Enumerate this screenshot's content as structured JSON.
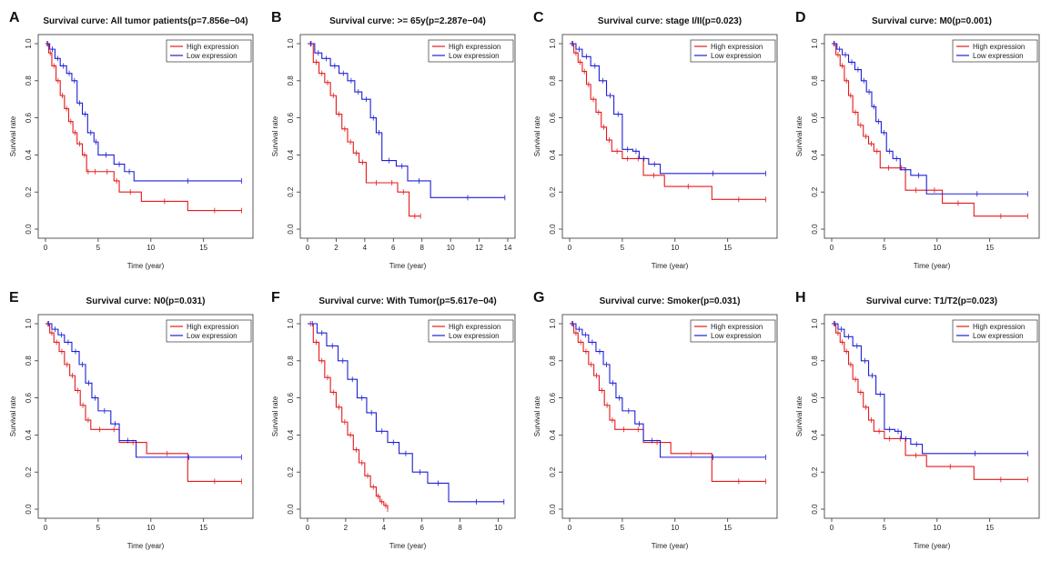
{
  "figure": {
    "legend_high": "High expression",
    "legend_low": "Low expression",
    "colors": {
      "high": "#e41a1c",
      "low": "#1f1fd6"
    }
  },
  "chart_data": [
    {
      "type": "line",
      "panel": "A",
      "title": "Survival curve: All tumor patients(p=7.856e−04)",
      "xlabel": "Time (year)",
      "ylabel": "Survival rate",
      "xlim": [
        0,
        19
      ],
      "ylim": [
        0,
        1
      ],
      "xticks": [
        0,
        5,
        10,
        15
      ],
      "yticks": [
        0,
        0.2,
        0.4,
        0.6,
        0.8,
        1
      ],
      "series": [
        {
          "name": "High expression",
          "x": [
            0,
            0.3,
            0.6,
            1,
            1.4,
            1.8,
            2.2,
            2.6,
            3,
            3.5,
            3.9,
            4.2,
            5.2,
            6.5,
            7,
            9.1,
            13.5,
            18.6
          ],
          "y": [
            1,
            0.95,
            0.88,
            0.8,
            0.72,
            0.65,
            0.58,
            0.52,
            0.46,
            0.4,
            0.31,
            0.31,
            0.31,
            0.26,
            0.2,
            0.15,
            0.1,
            0.1
          ]
        },
        {
          "name": "Low expression",
          "x": [
            0,
            0.4,
            0.9,
            1.4,
            2,
            2.5,
            3,
            3.5,
            4,
            4.6,
            5,
            6.5,
            7.5,
            8.4,
            18.6
          ],
          "y": [
            1,
            0.97,
            0.92,
            0.88,
            0.84,
            0.8,
            0.68,
            0.62,
            0.52,
            0.47,
            0.4,
            0.35,
            0.31,
            0.26,
            0.26
          ]
        }
      ]
    },
    {
      "type": "line",
      "panel": "B",
      "title": "Survival curve: >= 65y(p=2.287e−04)",
      "xlabel": "Time (year)",
      "ylabel": "Survival rate",
      "xlim": [
        0,
        14
      ],
      "ylim": [
        0,
        1
      ],
      "xticks": [
        0,
        2,
        4,
        6,
        8,
        10,
        12,
        14
      ],
      "yticks": [
        0,
        0.2,
        0.4,
        0.6,
        0.8,
        1
      ],
      "series": [
        {
          "name": "High expression",
          "x": [
            0,
            0.4,
            0.8,
            1.2,
            1.6,
            2,
            2.4,
            2.8,
            3.2,
            3.6,
            4.1,
            5.5,
            6.3,
            7.1,
            7.9
          ],
          "y": [
            1,
            0.9,
            0.84,
            0.79,
            0.72,
            0.62,
            0.54,
            0.47,
            0.41,
            0.36,
            0.25,
            0.25,
            0.2,
            0.07,
            0.07
          ]
        },
        {
          "name": "Low expression",
          "x": [
            0,
            0.5,
            1,
            1.6,
            2.2,
            2.8,
            3.3,
            3.8,
            4.4,
            4.8,
            5.2,
            6.2,
            7,
            8.6,
            13.8
          ],
          "y": [
            1,
            0.95,
            0.92,
            0.88,
            0.84,
            0.8,
            0.74,
            0.7,
            0.6,
            0.52,
            0.37,
            0.34,
            0.26,
            0.17,
            0.17
          ]
        }
      ]
    },
    {
      "type": "line",
      "panel": "C",
      "title": "Survival curve: stage I/II(p=0.023)",
      "xlabel": "Time (year)",
      "ylabel": "Survival rate",
      "xlim": [
        0,
        19
      ],
      "ylim": [
        0,
        1
      ],
      "xticks": [
        0,
        5,
        10,
        15
      ],
      "yticks": [
        0,
        0.2,
        0.4,
        0.6,
        0.8,
        1
      ],
      "series": [
        {
          "name": "High expression",
          "x": [
            0,
            0.4,
            0.8,
            1.2,
            1.6,
            2,
            2.5,
            3,
            3.5,
            4,
            5,
            6,
            7,
            9,
            13.5,
            18.6
          ],
          "y": [
            1,
            0.95,
            0.9,
            0.85,
            0.78,
            0.7,
            0.63,
            0.55,
            0.48,
            0.42,
            0.38,
            0.38,
            0.29,
            0.23,
            0.16,
            0.16
          ]
        },
        {
          "name": "Low expression",
          "x": [
            0,
            0.6,
            1.2,
            2,
            2.8,
            3.5,
            4.2,
            5,
            6,
            6.6,
            7.5,
            8.6,
            18.6
          ],
          "y": [
            1,
            0.97,
            0.93,
            0.88,
            0.8,
            0.72,
            0.62,
            0.43,
            0.42,
            0.38,
            0.35,
            0.3,
            0.3
          ]
        }
      ]
    },
    {
      "type": "line",
      "panel": "D",
      "title": "Survival curve: M0(p=0.001)",
      "xlabel": "Time (year)",
      "ylabel": "Survival rate",
      "xlim": [
        0,
        19
      ],
      "ylim": [
        0,
        1
      ],
      "xticks": [
        0,
        5,
        10,
        15
      ],
      "yticks": [
        0,
        0.2,
        0.4,
        0.6,
        0.8,
        1
      ],
      "series": [
        {
          "name": "High expression",
          "x": [
            0,
            0.4,
            0.8,
            1.2,
            1.6,
            2,
            2.5,
            3,
            3.5,
            4,
            4.6,
            6.2,
            7,
            9,
            10.5,
            13.5,
            18.6
          ],
          "y": [
            1,
            0.94,
            0.88,
            0.8,
            0.72,
            0.63,
            0.56,
            0.5,
            0.46,
            0.42,
            0.33,
            0.33,
            0.21,
            0.21,
            0.14,
            0.07,
            0.07
          ]
        },
        {
          "name": "Low expression",
          "x": [
            0,
            0.5,
            1,
            1.6,
            2.2,
            2.8,
            3.3,
            3.8,
            4.2,
            4.7,
            5.2,
            5.8,
            6.5,
            7.5,
            9,
            18.6
          ],
          "y": [
            1,
            0.97,
            0.94,
            0.9,
            0.86,
            0.8,
            0.74,
            0.66,
            0.58,
            0.52,
            0.42,
            0.38,
            0.32,
            0.29,
            0.19,
            0.19
          ]
        }
      ]
    },
    {
      "type": "line",
      "panel": "E",
      "title": "Survival curve: N0(p=0.031)",
      "xlabel": "Time (year)",
      "ylabel": "Survival rate",
      "xlim": [
        0,
        19
      ],
      "ylim": [
        0,
        1
      ],
      "xticks": [
        0,
        5,
        10,
        15
      ],
      "yticks": [
        0,
        0.2,
        0.4,
        0.6,
        0.8,
        1
      ],
      "series": [
        {
          "name": "High expression",
          "x": [
            0,
            0.4,
            0.8,
            1.3,
            1.8,
            2.3,
            2.8,
            3.3,
            3.8,
            4.3,
            6,
            7,
            9.6,
            13.5,
            18.6
          ],
          "y": [
            1,
            0.95,
            0.9,
            0.85,
            0.78,
            0.72,
            0.64,
            0.56,
            0.48,
            0.43,
            0.43,
            0.36,
            0.3,
            0.15,
            0.15
          ]
        },
        {
          "name": "Low expression",
          "x": [
            0,
            0.6,
            1.2,
            1.8,
            2.5,
            3.2,
            3.8,
            4.4,
            5,
            6.2,
            7,
            8.6,
            18.6
          ],
          "y": [
            1,
            0.97,
            0.94,
            0.9,
            0.85,
            0.78,
            0.68,
            0.6,
            0.53,
            0.46,
            0.37,
            0.28,
            0.28
          ]
        }
      ]
    },
    {
      "type": "line",
      "panel": "F",
      "title": "Survival curve: With Tumor(p=5.617e−04)",
      "xlabel": "Time (year)",
      "ylabel": "Survival rate",
      "xlim": [
        0,
        10.5
      ],
      "ylim": [
        0,
        1
      ],
      "xticks": [
        0,
        2,
        4,
        6,
        8,
        10
      ],
      "yticks": [
        0,
        0.2,
        0.4,
        0.6,
        0.8,
        1
      ],
      "series": [
        {
          "name": "High expression",
          "x": [
            0,
            0.3,
            0.6,
            0.9,
            1.2,
            1.5,
            1.8,
            2.1,
            2.4,
            2.7,
            3,
            3.3,
            3.6,
            3.8,
            4,
            4.2
          ],
          "y": [
            1,
            0.9,
            0.8,
            0.71,
            0.63,
            0.55,
            0.47,
            0.4,
            0.32,
            0.25,
            0.18,
            0.12,
            0.07,
            0.04,
            0.02,
            0
          ]
        },
        {
          "name": "Low expression",
          "x": [
            0,
            0.5,
            1,
            1.6,
            2.1,
            2.6,
            3.1,
            3.6,
            4.2,
            4.8,
            5.5,
            6.3,
            7.4,
            10.3
          ],
          "y": [
            1,
            0.95,
            0.88,
            0.8,
            0.7,
            0.6,
            0.52,
            0.42,
            0.36,
            0.3,
            0.2,
            0.14,
            0.04,
            0.04
          ]
        }
      ]
    },
    {
      "type": "line",
      "panel": "G",
      "title": "Survival curve: Smoker(p=0.031)",
      "xlabel": "Time (year)",
      "ylabel": "Survival rate",
      "xlim": [
        0,
        19
      ],
      "ylim": [
        0,
        1
      ],
      "xticks": [
        0,
        5,
        10,
        15
      ],
      "yticks": [
        0,
        0.2,
        0.4,
        0.6,
        0.8,
        1
      ],
      "series": [
        {
          "name": "High expression",
          "x": [
            0,
            0.4,
            0.8,
            1.3,
            1.8,
            2.3,
            2.8,
            3.3,
            3.8,
            4.3,
            6,
            7,
            9.6,
            13.5,
            18.6
          ],
          "y": [
            1,
            0.95,
            0.9,
            0.85,
            0.78,
            0.72,
            0.64,
            0.56,
            0.48,
            0.43,
            0.43,
            0.36,
            0.3,
            0.15,
            0.15
          ]
        },
        {
          "name": "Low expression",
          "x": [
            0,
            0.6,
            1.2,
            1.8,
            2.5,
            3.2,
            3.8,
            4.4,
            5,
            6.2,
            7,
            8.6,
            18.6
          ],
          "y": [
            1,
            0.97,
            0.94,
            0.9,
            0.85,
            0.78,
            0.68,
            0.6,
            0.53,
            0.46,
            0.37,
            0.28,
            0.28
          ]
        }
      ]
    },
    {
      "type": "line",
      "panel": "H",
      "title": "Survival curve: T1/T2(p=0.023)",
      "xlabel": "Time (year)",
      "ylabel": "Survival rate",
      "xlim": [
        0,
        19
      ],
      "ylim": [
        0,
        1
      ],
      "xticks": [
        0,
        5,
        10,
        15
      ],
      "yticks": [
        0,
        0.2,
        0.4,
        0.6,
        0.8,
        1
      ],
      "series": [
        {
          "name": "High expression",
          "x": [
            0,
            0.4,
            0.8,
            1.2,
            1.6,
            2,
            2.5,
            3,
            3.5,
            4,
            5,
            6,
            7,
            9,
            13.5,
            18.6
          ],
          "y": [
            1,
            0.95,
            0.9,
            0.85,
            0.78,
            0.7,
            0.63,
            0.55,
            0.48,
            0.42,
            0.38,
            0.38,
            0.29,
            0.23,
            0.16,
            0.16
          ]
        },
        {
          "name": "Low expression",
          "x": [
            0,
            0.6,
            1.2,
            2,
            2.8,
            3.5,
            4.2,
            5,
            6,
            6.6,
            7.5,
            8.6,
            18.6
          ],
          "y": [
            1,
            0.97,
            0.93,
            0.88,
            0.8,
            0.72,
            0.62,
            0.43,
            0.42,
            0.38,
            0.35,
            0.3,
            0.3
          ]
        }
      ]
    }
  ]
}
